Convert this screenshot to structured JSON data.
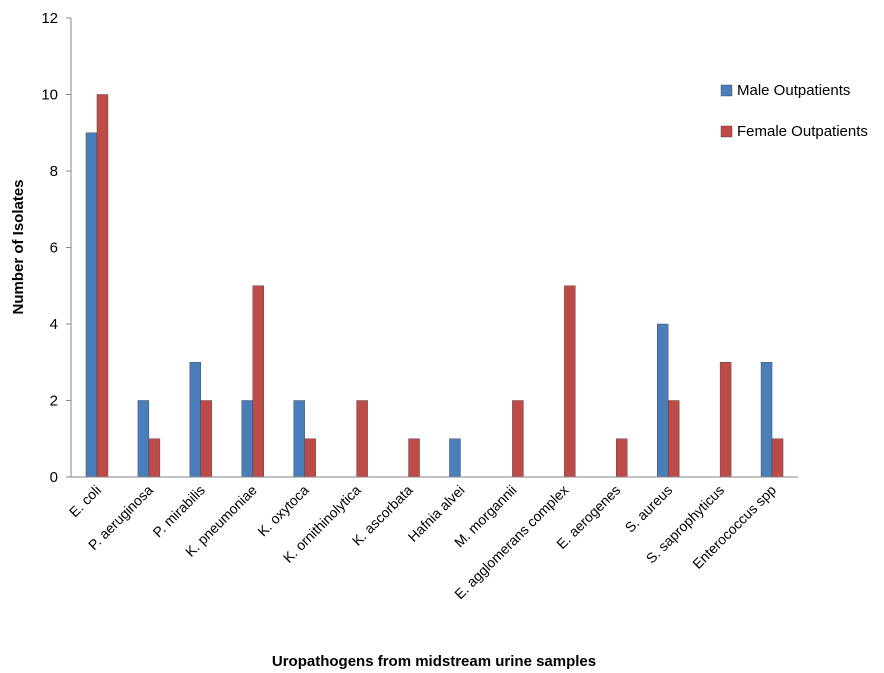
{
  "chart_data": {
    "type": "bar",
    "title": "",
    "xlabel": "Uropathogens  from midstream  urine samples",
    "ylabel": "Number  of Isolates",
    "ylim": [
      0,
      12
    ],
    "yticks": [
      "0",
      "2",
      "4",
      "6",
      "8",
      "10",
      "12"
    ],
    "grid": false,
    "legend_position": "right",
    "categories": [
      "E. coli",
      "P. aeruginosa",
      "P. mirabilis",
      "K. pneumoniae",
      "K. oxytoca",
      "K. ornithinolytica",
      "K. ascorbata",
      "Hafnia alvei",
      "M. morgannii",
      "E. agglomerans complex",
      "E. aerogenes",
      "S. aureus",
      "S. saprophyticus",
      "Enterococcus spp"
    ],
    "series": [
      {
        "name": "Male Outpatients",
        "color": "#4a7ebb",
        "values": [
          9,
          2,
          3,
          2,
          2,
          0,
          0,
          1,
          0,
          0,
          0,
          4,
          0,
          3
        ]
      },
      {
        "name": "Female Outpatients",
        "color": "#be4b48",
        "values": [
          10,
          1,
          2,
          5,
          1,
          2,
          1,
          0,
          2,
          5,
          1,
          2,
          3,
          1
        ]
      }
    ]
  }
}
